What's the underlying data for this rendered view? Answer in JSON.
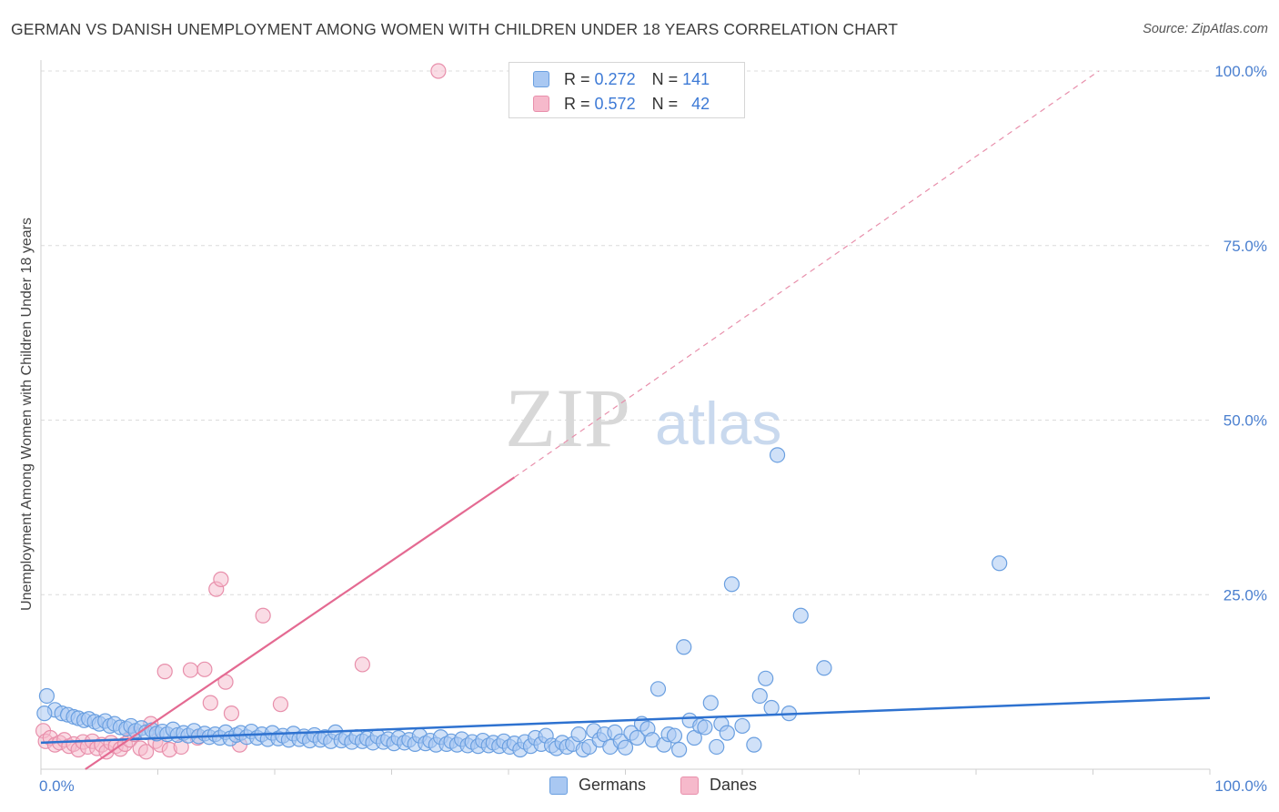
{
  "title": "GERMAN VS DANISH UNEMPLOYMENT AMONG WOMEN WITH CHILDREN UNDER 18 YEARS CORRELATION CHART",
  "source": "Source: ZipAtlas.com",
  "watermark": {
    "zip": "ZIP",
    "atlas": "atlas"
  },
  "legend": {
    "germans": {
      "r_label": "R =",
      "r_value": "0.272",
      "n_label": "N =",
      "n_value": "141"
    },
    "danes": {
      "r_label": "R =",
      "r_value": "0.572",
      "n_label": "N =",
      "n_value": "42"
    }
  },
  "colors": {
    "germans_fill": "#a9c8f2",
    "germans_stroke": "#6a9fe0",
    "germans_line": "#2e72d0",
    "danes_fill": "#f6b9cb",
    "danes_stroke": "#e88fab",
    "danes_line": "#e46a92",
    "grid": "#dcdcdc",
    "tick_text": "#4a7fcf"
  },
  "chart_data": {
    "type": "scatter",
    "title": "GERMAN VS DANISH UNEMPLOYMENT AMONG WOMEN WITH CHILDREN UNDER 18 YEARS CORRELATION CHART",
    "xlabel": "",
    "ylabel": "Unemployment Among Women with Children Under 18 years",
    "xlim": [
      0,
      100
    ],
    "ylim": [
      0,
      100
    ],
    "x_ticks": [
      "0.0%",
      "100.0%"
    ],
    "y_ticks": [
      {
        "value": 25,
        "label": "25.0%"
      },
      {
        "value": 50,
        "label": "50.0%"
      },
      {
        "value": 75,
        "label": "75.0%"
      },
      {
        "value": 100,
        "label": "100.0%"
      }
    ],
    "grid": true,
    "legend_position": "top-center",
    "series": [
      {
        "name": "Germans",
        "r": 0.272,
        "n": 141,
        "trend": {
          "x": [
            0,
            100
          ],
          "y": [
            3.8,
            10.2
          ],
          "dashed_extension": false
        },
        "points": [
          [
            0.5,
            10.5
          ],
          [
            1.2,
            8.5
          ],
          [
            1.8,
            8
          ],
          [
            2.3,
            7.8
          ],
          [
            2.8,
            7.5
          ],
          [
            3.2,
            7.3
          ],
          [
            3.7,
            7
          ],
          [
            4.1,
            7.2
          ],
          [
            4.6,
            6.8
          ],
          [
            5.0,
            6.5
          ],
          [
            5.5,
            6.9
          ],
          [
            5.9,
            6.2
          ],
          [
            6.3,
            6.5
          ],
          [
            6.8,
            6.0
          ],
          [
            7.3,
            5.8
          ],
          [
            7.7,
            6.2
          ],
          [
            8.1,
            5.5
          ],
          [
            8.6,
            5.9
          ],
          [
            9.0,
            5.3
          ],
          [
            9.5,
            5.6
          ],
          [
            9.9,
            5.1
          ],
          [
            10.4,
            5.4
          ],
          [
            10.8,
            5.0
          ],
          [
            11.3,
            5.7
          ],
          [
            11.7,
            4.9
          ],
          [
            12.2,
            5.2
          ],
          [
            12.6,
            4.8
          ],
          [
            13.1,
            5.5
          ],
          [
            13.5,
            4.7
          ],
          [
            14.0,
            5.1
          ],
          [
            14.4,
            4.6
          ],
          [
            14.9,
            5.0
          ],
          [
            15.3,
            4.5
          ],
          [
            15.8,
            5.3
          ],
          [
            16.2,
            4.4
          ],
          [
            16.7,
            4.9
          ],
          [
            17.1,
            5.2
          ],
          [
            17.6,
            4.6
          ],
          [
            18.0,
            5.4
          ],
          [
            18.5,
            4.5
          ],
          [
            18.9,
            5.0
          ],
          [
            19.4,
            4.3
          ],
          [
            19.8,
            5.2
          ],
          [
            20.3,
            4.4
          ],
          [
            20.7,
            4.8
          ],
          [
            21.2,
            4.2
          ],
          [
            21.6,
            5.1
          ],
          [
            22.1,
            4.3
          ],
          [
            22.5,
            4.7
          ],
          [
            23.0,
            4.1
          ],
          [
            23.4,
            4.9
          ],
          [
            23.9,
            4.2
          ],
          [
            24.3,
            4.6
          ],
          [
            24.8,
            4.0
          ],
          [
            25.2,
            5.3
          ],
          [
            25.7,
            4.1
          ],
          [
            26.1,
            4.5
          ],
          [
            26.6,
            3.9
          ],
          [
            27.0,
            4.6
          ],
          [
            27.5,
            4.0
          ],
          [
            27.9,
            4.4
          ],
          [
            28.4,
            3.8
          ],
          [
            28.8,
            4.7
          ],
          [
            29.3,
            3.9
          ],
          [
            29.7,
            4.3
          ],
          [
            30.2,
            3.7
          ],
          [
            30.6,
            4.5
          ],
          [
            31.1,
            3.8
          ],
          [
            31.5,
            4.2
          ],
          [
            32.0,
            3.6
          ],
          [
            32.4,
            4.8
          ],
          [
            32.9,
            3.7
          ],
          [
            33.3,
            4.1
          ],
          [
            33.8,
            3.5
          ],
          [
            34.2,
            4.6
          ],
          [
            34.7,
            3.6
          ],
          [
            35.1,
            4.0
          ],
          [
            35.6,
            3.5
          ],
          [
            36.0,
            4.3
          ],
          [
            36.5,
            3.4
          ],
          [
            36.9,
            3.9
          ],
          [
            37.4,
            3.3
          ],
          [
            37.8,
            4.1
          ],
          [
            38.3,
            3.4
          ],
          [
            38.7,
            3.8
          ],
          [
            39.2,
            3.3
          ],
          [
            39.6,
            4.0
          ],
          [
            40.1,
            3.2
          ],
          [
            40.5,
            3.7
          ],
          [
            41.0,
            2.8
          ],
          [
            41.4,
            3.9
          ],
          [
            41.9,
            3.3
          ],
          [
            42.3,
            4.5
          ],
          [
            42.8,
            3.6
          ],
          [
            43.2,
            4.8
          ],
          [
            43.7,
            3.4
          ],
          [
            44.1,
            3.0
          ],
          [
            44.6,
            3.8
          ],
          [
            45.0,
            3.2
          ],
          [
            45.5,
            3.6
          ],
          [
            46.0,
            5.0
          ],
          [
            46.4,
            2.8
          ],
          [
            46.9,
            3.2
          ],
          [
            47.3,
            5.5
          ],
          [
            47.8,
            4.2
          ],
          [
            48.2,
            5.0
          ],
          [
            48.7,
            3.2
          ],
          [
            49.1,
            5.3
          ],
          [
            49.6,
            4.0
          ],
          [
            50.0,
            3.1
          ],
          [
            50.5,
            5.2
          ],
          [
            51.0,
            4.5
          ],
          [
            51.4,
            6.5
          ],
          [
            51.9,
            5.8
          ],
          [
            52.3,
            4.2
          ],
          [
            52.8,
            11.5
          ],
          [
            53.3,
            3.5
          ],
          [
            53.7,
            5.0
          ],
          [
            54.2,
            4.8
          ],
          [
            54.6,
            2.8
          ],
          [
            55.0,
            17.5
          ],
          [
            55.5,
            7.0
          ],
          [
            55.9,
            4.5
          ],
          [
            56.4,
            6.2
          ],
          [
            56.8,
            6.0
          ],
          [
            57.3,
            9.5
          ],
          [
            57.8,
            3.2
          ],
          [
            58.2,
            6.5
          ],
          [
            58.7,
            5.2
          ],
          [
            59.1,
            26.5
          ],
          [
            60.0,
            6.2
          ],
          [
            61.0,
            3.5
          ],
          [
            61.5,
            10.5
          ],
          [
            62.0,
            13.0
          ],
          [
            62.5,
            8.8
          ],
          [
            63.0,
            45.0
          ],
          [
            64.0,
            8.0
          ],
          [
            65.0,
            22.0
          ],
          [
            67.0,
            14.5
          ],
          [
            82.0,
            29.5
          ],
          [
            0.3,
            8.0
          ]
        ]
      },
      {
        "name": "Danes",
        "r": 0.572,
        "n": 42,
        "trend": {
          "x": [
            3.8,
            40.5
          ],
          "y": [
            0,
            41.8
          ],
          "dashed_x": [
            40.5,
            90.5
          ],
          "dashed_y": [
            41.8,
            100
          ]
        },
        "points": [
          [
            0.2,
            5.5
          ],
          [
            0.4,
            4.0
          ],
          [
            0.8,
            4.5
          ],
          [
            1.2,
            3.5
          ],
          [
            1.6,
            3.8
          ],
          [
            2.0,
            4.2
          ],
          [
            2.4,
            3.3
          ],
          [
            2.8,
            3.6
          ],
          [
            3.2,
            2.8
          ],
          [
            3.6,
            3.9
          ],
          [
            4.0,
            3.2
          ],
          [
            4.4,
            4.0
          ],
          [
            4.8,
            3.0
          ],
          [
            5.2,
            3.5
          ],
          [
            5.6,
            2.5
          ],
          [
            6.0,
            3.8
          ],
          [
            6.4,
            3.3
          ],
          [
            6.8,
            2.9
          ],
          [
            7.2,
            3.6
          ],
          [
            7.6,
            4.2
          ],
          [
            8.0,
            5.0
          ],
          [
            8.5,
            3.0
          ],
          [
            9.0,
            2.5
          ],
          [
            9.4,
            6.5
          ],
          [
            9.8,
            4.0
          ],
          [
            10.2,
            3.5
          ],
          [
            10.6,
            14.0
          ],
          [
            11.0,
            2.8
          ],
          [
            12.0,
            3.2
          ],
          [
            12.8,
            14.2
          ],
          [
            13.4,
            4.5
          ],
          [
            14.0,
            14.3
          ],
          [
            14.5,
            9.5
          ],
          [
            15.0,
            25.8
          ],
          [
            15.4,
            27.2
          ],
          [
            15.8,
            12.5
          ],
          [
            16.3,
            8.0
          ],
          [
            17.0,
            3.5
          ],
          [
            19.0,
            22.0
          ],
          [
            20.5,
            9.3
          ],
          [
            27.5,
            15.0
          ],
          [
            34.0,
            100.0
          ]
        ]
      }
    ]
  },
  "bottom_legend": {
    "germans": "Germans",
    "danes": "Danes"
  }
}
